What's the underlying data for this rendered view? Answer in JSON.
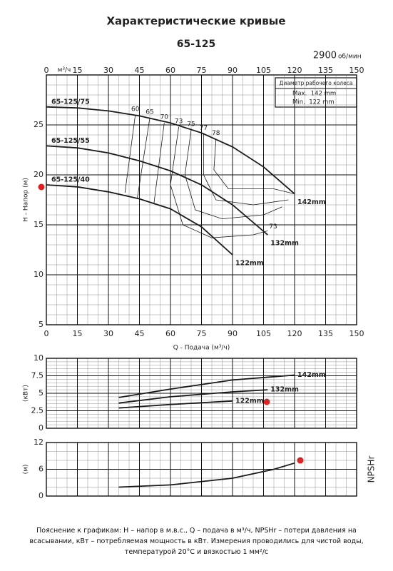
{
  "header": {
    "title": "Характеристические кривые",
    "model": "65-125",
    "speed": "2900",
    "speed_unit": "об/мин"
  },
  "chart_data": [
    {
      "type": "line",
      "x_label": "Q - Подача (м³/ч)",
      "y_label": "H - Напор (м)",
      "x_unit": "м³/ч",
      "xlim": [
        0,
        150
      ],
      "xticks": [
        0,
        15,
        30,
        45,
        60,
        75,
        90,
        105,
        120,
        135,
        150
      ],
      "ylim": [
        5,
        30
      ],
      "yticks": [
        5,
        10,
        15,
        20,
        25
      ],
      "grid": true,
      "color": "#1a1a1a",
      "series": [
        {
          "name": "65-125/75",
          "end_label": "142mm",
          "x": [
            0,
            15,
            30,
            45,
            60,
            75,
            90,
            105,
            120
          ],
          "values": [
            26.8,
            26.7,
            26.4,
            25.9,
            25.2,
            24.2,
            22.8,
            20.8,
            18.1
          ]
        },
        {
          "name": "65-125/55",
          "end_label": "132mm",
          "x": [
            0,
            15,
            30,
            45,
            60,
            75,
            90,
            107
          ],
          "values": [
            22.9,
            22.7,
            22.2,
            21.4,
            20.4,
            19.0,
            17.0,
            14.0
          ]
        },
        {
          "name": "65-125/40",
          "end_label": "122mm",
          "x": [
            0,
            15,
            30,
            45,
            60,
            75,
            90
          ],
          "values": [
            19.0,
            18.8,
            18.3,
            17.6,
            16.6,
            14.8,
            12.0
          ]
        }
      ],
      "efficiency_lines": [
        {
          "label": "60",
          "x": [
            43,
            38
          ],
          "values": [
            26.0,
            18.2
          ]
        },
        {
          "label": "65",
          "x": [
            50,
            44
          ],
          "values": [
            25.7,
            17.7
          ]
        },
        {
          "label": "70",
          "x": [
            57,
            52
          ],
          "values": [
            25.2,
            17.1
          ]
        },
        {
          "label": "73",
          "end_label": "73",
          "x": [
            64,
            60,
            66,
            80,
            100,
            107
          ],
          "values": [
            24.8,
            19.0,
            15.0,
            13.7,
            14.0,
            14.4
          ]
        },
        {
          "label": "75",
          "x": [
            70,
            67,
            72,
            85,
            105,
            114
          ],
          "values": [
            24.5,
            20.0,
            16.5,
            15.6,
            16.0,
            16.8
          ]
        },
        {
          "label": "77",
          "x": [
            76,
            76,
            82,
            100,
            117
          ],
          "values": [
            24.1,
            20.0,
            17.5,
            17.0,
            17.5
          ]
        },
        {
          "label": "78",
          "x": [
            82,
            81,
            88,
            110,
            120
          ],
          "values": [
            23.6,
            20.5,
            18.6,
            18.6,
            18.1
          ]
        }
      ],
      "legend_box": {
        "title": "Диаметр рабочего колеса",
        "rows": [
          "Max.  142 mm",
          "Min.  122 mm"
        ]
      }
    },
    {
      "type": "line",
      "y_label": "(кВт)",
      "xlim": [
        0,
        150
      ],
      "xticks": [
        0,
        15,
        30,
        45,
        60,
        75,
        90,
        105,
        120,
        135,
        150
      ],
      "ylim": [
        0,
        10
      ],
      "yticks": [
        0,
        2.5,
        5,
        7.5,
        10
      ],
      "grid": true,
      "color": "#1a1a1a",
      "series": [
        {
          "name": "142mm",
          "x": [
            35,
            60,
            90,
            120
          ],
          "values": [
            4.4,
            5.6,
            6.9,
            7.6
          ]
        },
        {
          "name": "132mm",
          "x": [
            35,
            60,
            90,
            107
          ],
          "values": [
            3.6,
            4.5,
            5.2,
            5.5
          ]
        },
        {
          "name": "122mm",
          "x": [
            35,
            60,
            90
          ],
          "values": [
            2.9,
            3.4,
            3.9
          ]
        }
      ]
    },
    {
      "type": "line",
      "y_label": "(м)",
      "side_label": "NPSHr",
      "xlim": [
        0,
        150
      ],
      "xticks": [
        0,
        15,
        30,
        45,
        60,
        75,
        90,
        105,
        120,
        135,
        150
      ],
      "ylim": [
        0,
        12
      ],
      "yticks": [
        0,
        6,
        12
      ],
      "grid": true,
      "color": "#1a1a1a",
      "series": [
        {
          "x": [
            35,
            60,
            90,
            110,
            120
          ],
          "values": [
            2.0,
            2.5,
            4.0,
            6.0,
            7.4
          ]
        }
      ]
    }
  ],
  "footnote": "Пояснение к графикам: H – напор в м.в.с., Q – подача в м³/ч, NPSHr – потери давления на всасывании, кВт – потребляемая мощность в кВт. Измерения проводились для чистой воды, температурой 20°C и вязкостью 1 мм²/с"
}
